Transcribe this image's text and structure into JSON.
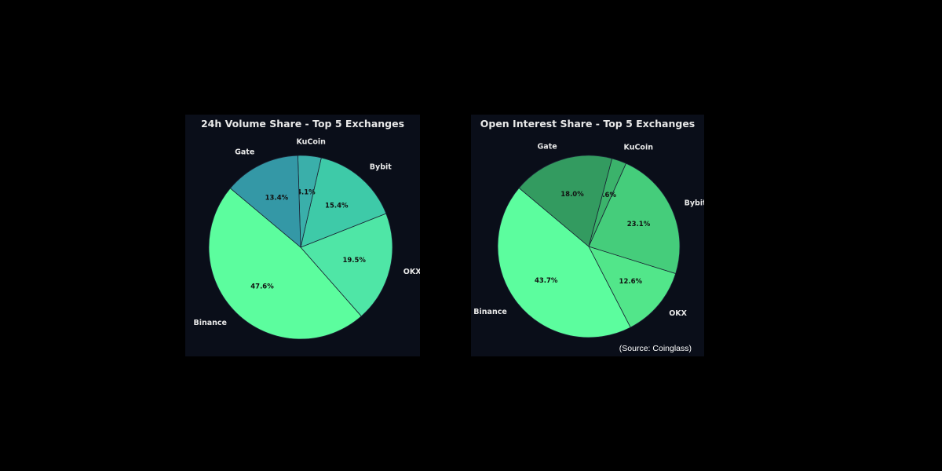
{
  "chart_data": [
    {
      "type": "pie",
      "title": "24h Volume Share - Top 5 Exchanges",
      "categories": [
        "Binance",
        "OKX",
        "Bybit",
        "KuCoin",
        "Gate"
      ],
      "values": [
        47.6,
        19.5,
        15.4,
        4.1,
        13.4
      ],
      "value_labels": [
        "47.6%",
        "19.5%",
        "15.4%",
        "4.1%",
        "13.4%"
      ],
      "colors": [
        "#5cfd9e",
        "#4fe6a6",
        "#3ecaa8",
        "#3aafaa",
        "#3498a6"
      ]
    },
    {
      "type": "pie",
      "title": "Open Interest Share - Top 5 Exchanges",
      "categories": [
        "Binance",
        "OKX",
        "Bybit",
        "KuCoin",
        "Gate"
      ],
      "values": [
        43.7,
        12.6,
        23.1,
        2.6,
        18.0
      ],
      "value_labels": [
        "43.7%",
        "12.6%",
        "23.1%",
        "2.6%",
        "18.0%"
      ],
      "colors": [
        "#5cfd9e",
        "#52e68a",
        "#45cd7b",
        "#3bb36b",
        "#339b60"
      ]
    }
  ],
  "source_note": "(Source: Coinglass)"
}
